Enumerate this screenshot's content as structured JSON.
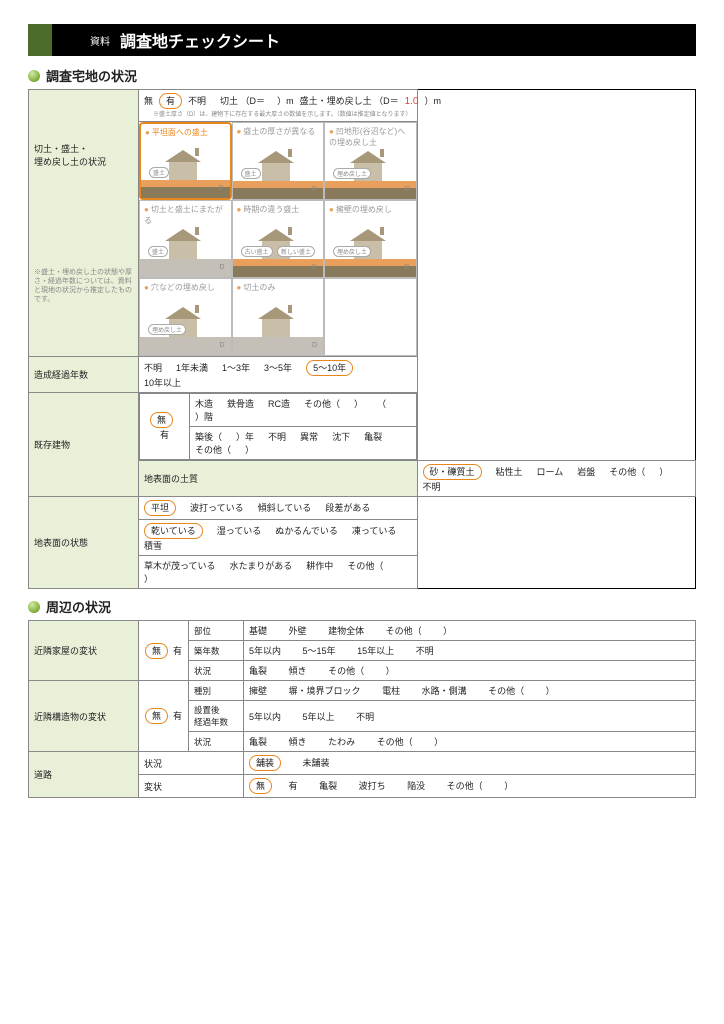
{
  "header": {
    "tag": "資料",
    "title": "調査地チェックシート"
  },
  "section1": {
    "title": "調査宅地の状況",
    "r1": {
      "label": "切土・盛土・\n埋め戻し土の状況",
      "opts": [
        "無",
        "有",
        "不明"
      ],
      "selected": "有",
      "cut": "切土 （D＝",
      "cut_unit": "）m",
      "fill": "盛土・埋め戻し土 （D＝",
      "fill_val": "1.0",
      "fill_unit": "）m",
      "foot": "※盛土厚さ（D）は、建物下に存在する最大厚さの数値を示します。（数値は推定値となります）",
      "diagrams": [
        {
          "t": "平坦面への盛土",
          "sel": true,
          "badge": "盛土"
        },
        {
          "t": "盛土の厚さが異なる",
          "badge": "盛土"
        },
        {
          "t": "凹地形(谷沼など)への埋め戻し土",
          "badge": "埋め戻し土"
        },
        {
          "t": "切土と盛土にまたがる",
          "badge": "盛土"
        },
        {
          "t": "時期の違う盛土",
          "badge": "古い盛土",
          "badge2": "新しい盛土"
        },
        {
          "t": "擁壁の埋め戻し",
          "badge": "埋め戻し土"
        },
        {
          "t": "穴などの埋め戻し",
          "badge": "埋め戻し土"
        },
        {
          "t": "切土のみ"
        }
      ],
      "note": "※盛土・埋め戻し土の状態や厚さ・経過年数については、資料と現地の状況から推定したものです。"
    },
    "r2": {
      "label": "造成経過年数",
      "opts": [
        "不明",
        "1年未満",
        "1～3年",
        "3～5年",
        "5～10年",
        "10年以上"
      ],
      "selected": "5～10年"
    },
    "r3": {
      "label": "既存建物",
      "opts": [
        "無",
        "有"
      ],
      "selected": "無",
      "row_a": [
        "木造",
        "鉄骨造",
        "RC造",
        "その他（",
        "）",
        "（",
        "）階"
      ],
      "row_b": [
        "築後（",
        "）年",
        "不明",
        "異常",
        "沈下",
        "亀裂",
        "その他（",
        "）"
      ]
    },
    "r4": {
      "label": "地表面の土質",
      "opts": [
        "砂・礫質土",
        "粘性土",
        "ローム",
        "岩盤",
        "その他（",
        "）",
        "不明"
      ],
      "selected": "砂・礫質土"
    },
    "r5": {
      "label": "地表面の状態",
      "row_a": {
        "opts": [
          "平坦",
          "波打っている",
          "傾斜している",
          "段差がある"
        ],
        "selected": "平坦"
      },
      "row_b": {
        "opts": [
          "乾いている",
          "湿っている",
          "ぬかるんでいる",
          "凍っている",
          "積雪"
        ],
        "selected": "乾いている"
      },
      "row_c": [
        "草木が茂っている",
        "水たまりがある",
        "耕作中",
        "その他（",
        "）"
      ]
    }
  },
  "section2": {
    "title": "周辺の状況",
    "r1": {
      "label": "近隣家屋の変状",
      "opts": [
        "無",
        "有"
      ],
      "selected": "無",
      "rows": [
        {
          "h": "部位",
          "c": [
            "基礎",
            "外壁",
            "建物全体",
            "その他（",
            "）"
          ]
        },
        {
          "h": "築年数",
          "c": [
            "5年以内",
            "5～15年",
            "15年以上",
            "不明"
          ]
        },
        {
          "h": "状況",
          "c": [
            "亀裂",
            "傾き",
            "その他（",
            "）"
          ]
        }
      ]
    },
    "r2": {
      "label": "近隣構造物の変状",
      "opts": [
        "無",
        "有"
      ],
      "selected": "無",
      "rows": [
        {
          "h": "種別",
          "c": [
            "擁壁",
            "塀・境界ブロック",
            "電柱",
            "水路・側溝",
            "その他（",
            "）"
          ]
        },
        {
          "h": "設置後\n経過年数",
          "c": [
            "5年以内",
            "5年以上",
            "不明"
          ]
        },
        {
          "h": "状況",
          "c": [
            "亀裂",
            "傾き",
            "たわみ",
            "その他（",
            "）"
          ]
        }
      ]
    },
    "r3": {
      "label": "道路",
      "rows": [
        {
          "h": "状況",
          "c": [
            "舗装",
            "未舗装"
          ],
          "selected": "舗装"
        },
        {
          "h": "変状",
          "pre": [
            "無",
            "有"
          ],
          "presel": "無",
          "c": [
            "亀裂",
            "波打ち",
            "陥没",
            "その他（",
            "）"
          ]
        }
      ]
    }
  },
  "colors": {
    "accent": "#e8861c",
    "green": "#4a6b2a",
    "cellgreen": "#e8f0d8"
  }
}
